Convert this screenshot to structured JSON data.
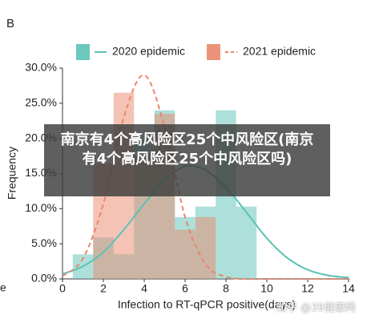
{
  "panel_label": "B",
  "edge_text": "e",
  "chart_data": {
    "type": "histogram",
    "ylabel": "Frequency",
    "xlabel": "Infection to RT-qPCR positive(days)",
    "bins": [
      0.5,
      1.5,
      2.5,
      3.5,
      4.5,
      5.5,
      6.5,
      7.5,
      8.5,
      9.5
    ],
    "fit_x": [
      0,
      1,
      2,
      3,
      4,
      5,
      6,
      7,
      8,
      9,
      10,
      11,
      12,
      13,
      14
    ],
    "series": [
      {
        "name": "2020 epidemic",
        "color": "#5cc2b5",
        "values": [
          3.5,
          5.9,
          3.5,
          20,
          24,
          8.8,
          10.3,
          24,
          10.3
        ],
        "fit": [
          0.7,
          1.8,
          3.8,
          7,
          10.7,
          14,
          16,
          15.5,
          13,
          9.5,
          5.8,
          3,
          1.3,
          0.5,
          0.2
        ]
      },
      {
        "name": "2021 epidemic",
        "color": "#e9876b",
        "values": [
          0,
          16.5,
          26.5,
          17.6,
          23.5,
          7,
          8.8,
          0,
          0
        ],
        "fit": [
          0.4,
          2.9,
          10.7,
          23,
          29,
          21.6,
          8.8,
          2.1,
          0.3,
          0,
          0,
          0,
          0,
          0,
          0
        ]
      }
    ],
    "xlim": [
      0,
      14
    ],
    "xticks": [
      0,
      2,
      4,
      6,
      8,
      10,
      12,
      14
    ],
    "ylim": [
      0,
      30
    ],
    "yticks": [
      {
        "value": 0,
        "label": "0.0%"
      },
      {
        "value": 5,
        "label": "5.0%"
      },
      {
        "value": 10,
        "label": "10.0%"
      },
      {
        "value": 15,
        "label": "15.0%"
      },
      {
        "value": 20,
        "label": "20.0%"
      },
      {
        "value": 25,
        "label": "25.0%"
      },
      {
        "value": 30,
        "label": "30.0%"
      }
    ]
  },
  "overlay_caption": "南京有4个高风险区25个中风险区(南京有4个高风险区25个中风险区吗)",
  "watermark": "知乎 @39健康网"
}
